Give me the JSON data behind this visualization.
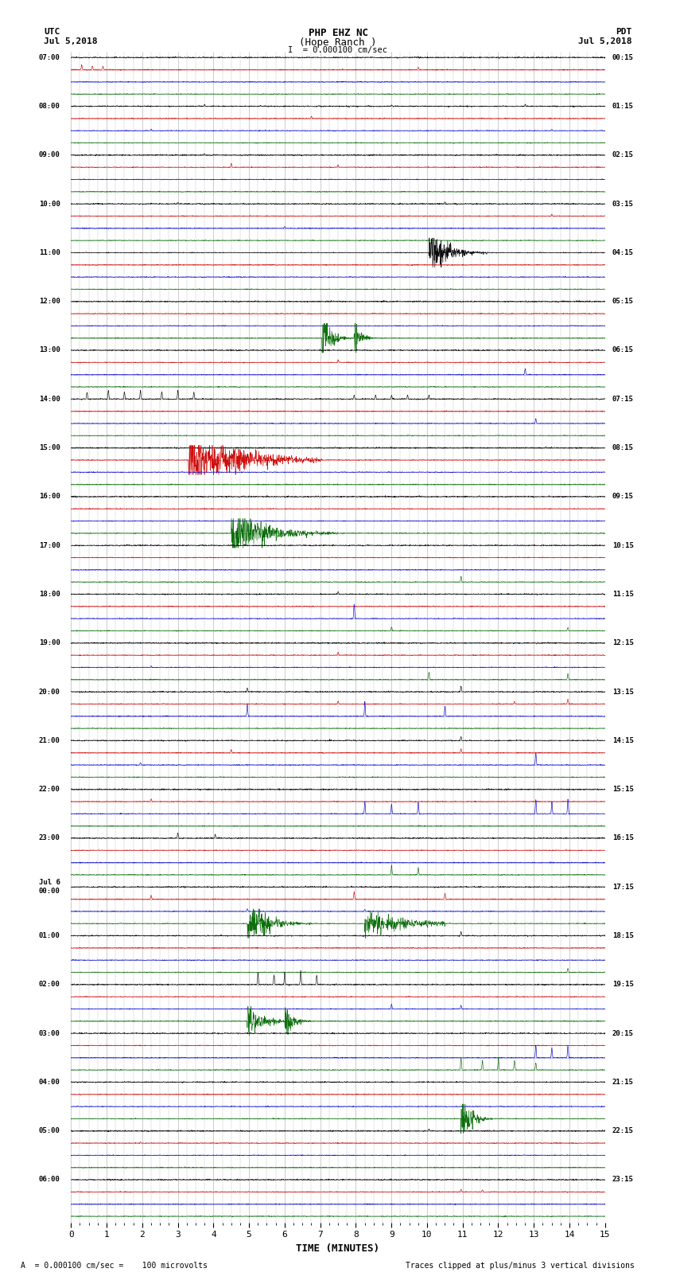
{
  "title_line1": "PHP EHZ NC",
  "title_line2": "(Hope Ranch )",
  "title_line3": "I  = 0.000100 cm/sec",
  "left_header_line1": "UTC",
  "left_header_line2": "Jul 5,2018",
  "right_header_line1": "PDT",
  "right_header_line2": "Jul 5,2018",
  "xlabel": "TIME (MINUTES)",
  "footer_left": "= 0.000100 cm/sec =    100 microvolts",
  "footer_right": "Traces clipped at plus/minus 3 vertical divisions",
  "xlim": [
    0,
    15
  ],
  "xticks": [
    0,
    1,
    2,
    3,
    4,
    5,
    6,
    7,
    8,
    9,
    10,
    11,
    12,
    13,
    14,
    15
  ],
  "utc_labels": [
    "07:00",
    "08:00",
    "09:00",
    "10:00",
    "11:00",
    "12:00",
    "13:00",
    "14:00",
    "15:00",
    "16:00",
    "17:00",
    "18:00",
    "19:00",
    "20:00",
    "21:00",
    "22:00",
    "23:00",
    "Jul 6\n00:00",
    "01:00",
    "02:00",
    "03:00",
    "04:00",
    "05:00",
    "06:00"
  ],
  "pdt_labels": [
    "00:15",
    "01:15",
    "02:15",
    "03:15",
    "04:15",
    "05:15",
    "06:15",
    "07:15",
    "08:15",
    "09:15",
    "10:15",
    "11:15",
    "12:15",
    "13:15",
    "14:15",
    "15:15",
    "16:15",
    "17:15",
    "18:15",
    "19:15",
    "20:15",
    "21:15",
    "22:15",
    "23:15"
  ],
  "num_hours": 24,
  "colors_cycle": [
    "#000000",
    "#cc0000",
    "#0000cc",
    "#006600"
  ],
  "bg_color": "white",
  "noise_scales": [
    0.06,
    0.04,
    0.04,
    0.04
  ]
}
